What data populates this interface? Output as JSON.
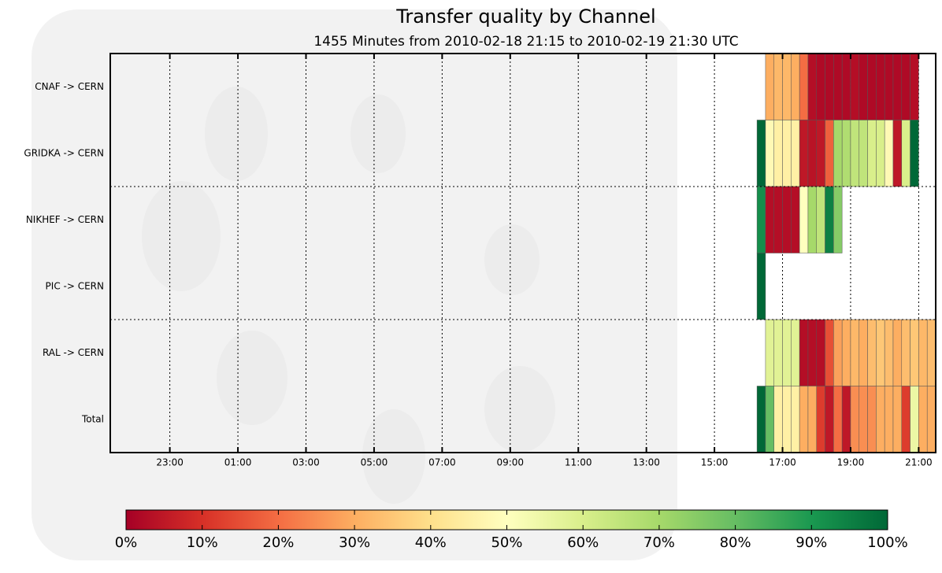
{
  "chart_data": {
    "type": "heatmap",
    "title": "Transfer quality by Channel",
    "subtitle": "1455 Minutes from 2010-02-18 21:15 to 2010-02-19 21:30 UTC",
    "categories": [
      "CNAF -> CERN",
      "GRIDKA -> CERN",
      "NIKHEF -> CERN",
      "PIC -> CERN",
      "RAL -> CERN",
      "Total"
    ],
    "xlim": [
      0,
      1455
    ],
    "xticks": [
      {
        "value": 105,
        "label": "23:00"
      },
      {
        "value": 225,
        "label": "01:00"
      },
      {
        "value": 345,
        "label": "03:00"
      },
      {
        "value": 465,
        "label": "05:00"
      },
      {
        "value": 585,
        "label": "07:00"
      },
      {
        "value": 705,
        "label": "09:00"
      },
      {
        "value": 825,
        "label": "11:00"
      },
      {
        "value": 945,
        "label": "13:00"
      },
      {
        "value": 1065,
        "label": "15:00"
      },
      {
        "value": 1185,
        "label": "17:00"
      },
      {
        "value": 1305,
        "label": "19:00"
      },
      {
        "value": 1425,
        "label": "21:00"
      }
    ],
    "bins": [
      1140,
      1155,
      1170,
      1185,
      1200,
      1215,
      1230,
      1245,
      1260,
      1275,
      1290,
      1305,
      1320,
      1335,
      1350,
      1365,
      1380,
      1395,
      1410,
      1425,
      1440,
      1455
    ],
    "values": [
      [
        null,
        30,
        32,
        32,
        30,
        20,
        3,
        2,
        2,
        2,
        2,
        3,
        2,
        2,
        2,
        2,
        2,
        2,
        3,
        null,
        null
      ],
      [
        100,
        48,
        45,
        45,
        45,
        5,
        4,
        5,
        18,
        70,
        68,
        65,
        65,
        60,
        60,
        48,
        5,
        60,
        100,
        null,
        null
      ],
      [
        92,
        3,
        3,
        3,
        3,
        50,
        70,
        65,
        95,
        75,
        null,
        null,
        null,
        null,
        null,
        null,
        null,
        null,
        null,
        null,
        null
      ],
      [
        100,
        null,
        null,
        null,
        null,
        null,
        null,
        null,
        null,
        null,
        null,
        null,
        null,
        null,
        null,
        null,
        null,
        null,
        null,
        null,
        null
      ],
      [
        null,
        58,
        58,
        58,
        58,
        3,
        3,
        3,
        15,
        28,
        30,
        32,
        30,
        33,
        35,
        33,
        30,
        33,
        35,
        32,
        33
      ],
      [
        100,
        80,
        45,
        45,
        45,
        30,
        30,
        12,
        5,
        20,
        5,
        25,
        25,
        25,
        30,
        30,
        30,
        12,
        55,
        30,
        30
      ]
    ],
    "colormap": [
      "#a50026",
      "#d73027",
      "#f46d43",
      "#fdae61",
      "#fee08b",
      "#ffffbf",
      "#d9ef8b",
      "#a6d96a",
      "#66bd63",
      "#1a9850",
      "#006837"
    ],
    "colorbar": {
      "lim": [
        0,
        100
      ],
      "ticks": [
        {
          "value": 0,
          "label": "0%"
        },
        {
          "value": 10,
          "label": "10%"
        },
        {
          "value": 20,
          "label": "20%"
        },
        {
          "value": 30,
          "label": "30%"
        },
        {
          "value": 40,
          "label": "40%"
        },
        {
          "value": 50,
          "label": "50%"
        },
        {
          "value": 60,
          "label": "60%"
        },
        {
          "value": 70,
          "label": "70%"
        },
        {
          "value": 80,
          "label": "80%"
        },
        {
          "value": 90,
          "label": "90%"
        },
        {
          "value": 100,
          "label": "100%"
        }
      ]
    },
    "grid": true
  }
}
